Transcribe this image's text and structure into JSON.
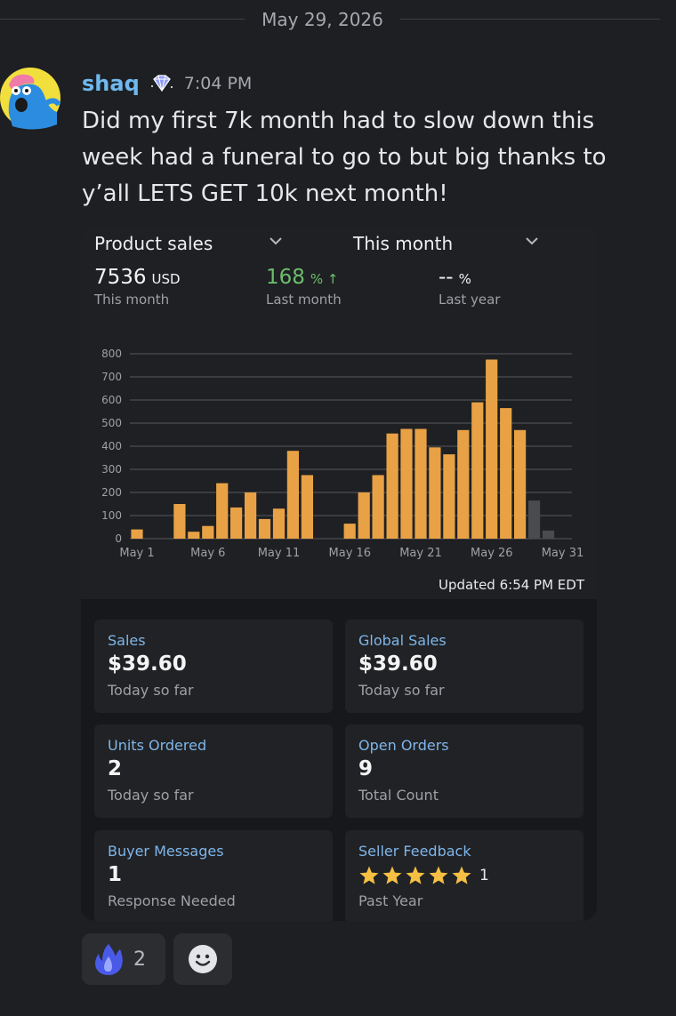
{
  "date_divider": "May 29, 2026",
  "message": {
    "username": "shaq",
    "time": "7:04 PM",
    "text": "Did my first 7k month had to slow down this week had a funeral to go to but big thanks to y’all LETS GET 10k next month!"
  },
  "dashboard": {
    "selector_left": "Product sales",
    "selector_right": "This month",
    "metrics": [
      {
        "value": "7536",
        "unit": "USD",
        "label": "This month"
      },
      {
        "value": "168",
        "unit": "% ↑",
        "label": "Last month"
      },
      {
        "value": "--",
        "unit": "%",
        "label": "Last year"
      }
    ],
    "updated": "Updated 6:54 PM EDT"
  },
  "chart_data": {
    "type": "bar",
    "x": [
      "May 1",
      "May 2",
      "May 3",
      "May 4",
      "May 5",
      "May 6",
      "May 7",
      "May 8",
      "May 9",
      "May 10",
      "May 11",
      "May 12",
      "May 13",
      "May 14",
      "May 15",
      "May 16",
      "May 17",
      "May 18",
      "May 19",
      "May 20",
      "May 21",
      "May 22",
      "May 23",
      "May 24",
      "May 25",
      "May 26",
      "May 27",
      "May 28",
      "May 29",
      "May 30",
      "May 31"
    ],
    "values": [
      40,
      0,
      0,
      150,
      30,
      55,
      240,
      135,
      200,
      85,
      130,
      380,
      275,
      0,
      0,
      65,
      200,
      275,
      455,
      475,
      475,
      395,
      365,
      470,
      590,
      775,
      565,
      470,
      165,
      35,
      0
    ],
    "status": [
      "complete",
      "complete",
      "complete",
      "complete",
      "complete",
      "complete",
      "complete",
      "complete",
      "complete",
      "complete",
      "complete",
      "complete",
      "complete",
      "complete",
      "complete",
      "complete",
      "complete",
      "complete",
      "complete",
      "complete",
      "complete",
      "complete",
      "complete",
      "complete",
      "complete",
      "complete",
      "complete",
      "complete",
      "pending",
      "pending",
      "pending"
    ],
    "xtick_labels": [
      "May 1",
      "May 6",
      "May 11",
      "May 16",
      "May 21",
      "May 26",
      "May 31"
    ],
    "ytick_labels": [
      "0",
      "100",
      "200",
      "300",
      "400",
      "500",
      "600",
      "700",
      "800"
    ],
    "ylim": [
      0,
      800
    ],
    "grid": true,
    "colors": {
      "bar": "#e8a245",
      "pending": "#4a4b4f"
    }
  },
  "tiles": [
    {
      "label": "Sales",
      "value": "$39.60",
      "sub": "Today so far"
    },
    {
      "label": "Global Sales",
      "value": "$39.60",
      "sub": "Today so far"
    },
    {
      "label": "Units Ordered",
      "value": "2",
      "sub": "Today so far"
    },
    {
      "label": "Open Orders",
      "value": "9",
      "sub": "Total Count"
    },
    {
      "label": "Buyer Messages",
      "value": "1",
      "sub": "Response Needed"
    },
    {
      "label": "Seller Feedback",
      "stars": 5,
      "value": "1",
      "sub": "Past Year"
    }
  ],
  "reactions": [
    {
      "icon": "fire-icon",
      "count": "2"
    },
    {
      "icon": "add-reaction-icon"
    }
  ]
}
